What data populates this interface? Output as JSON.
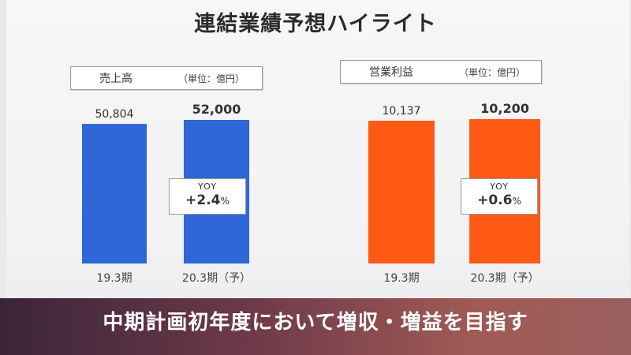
{
  "title": "連結業績予想ハイライト",
  "banner": "中期計画初年度において増収・増益を目指す",
  "colors": {
    "sales": "#2f66d8",
    "profit": "#ff5a14",
    "banner": "#6e3a4a"
  },
  "chart_data": [
    {
      "type": "bar",
      "label": "売上高",
      "unit": "（単位：億円）",
      "categories": [
        "19.3期",
        "20.3期（予）"
      ],
      "values": [
        50804,
        52000
      ],
      "value_labels": [
        "50,804",
        "52,000"
      ],
      "yoy_label": "YOY",
      "yoy_value": "+2.4",
      "yoy_unit": "%",
      "color": "#2f66d8"
    },
    {
      "type": "bar",
      "label": "営業利益",
      "unit": "（単位：億円）",
      "categories": [
        "19.3期",
        "20.3期（予）"
      ],
      "values": [
        10137,
        10200
      ],
      "value_labels": [
        "10,137",
        "10,200"
      ],
      "yoy_label": "YOY",
      "yoy_value": "+0.6",
      "yoy_unit": "%",
      "color": "#ff5a14"
    }
  ]
}
